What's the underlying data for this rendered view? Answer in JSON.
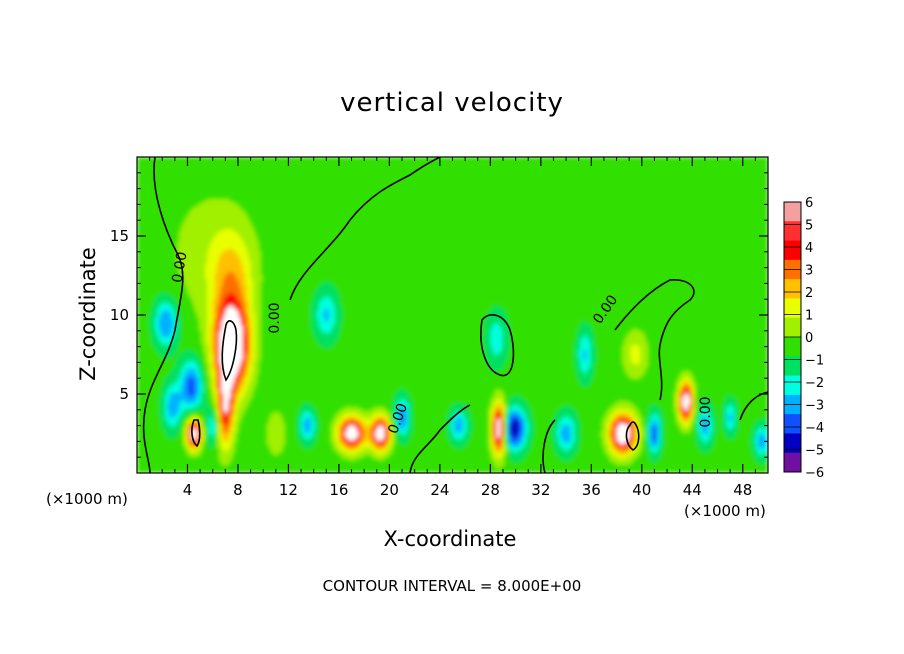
{
  "chart_data": {
    "type": "heatmap",
    "title": "vertical velocity",
    "xlabel": "X-coordinate",
    "ylabel": "Z-coordinate",
    "x_units": "(×1000 m)",
    "y_units": "(×1000 m)",
    "xlim": [
      0,
      50
    ],
    "ylim": [
      0,
      20
    ],
    "xticks": [
      4,
      8,
      12,
      16,
      20,
      24,
      28,
      32,
      36,
      40,
      44,
      48
    ],
    "yticks": [
      5,
      10,
      15
    ],
    "colorbar": {
      "min": -6,
      "max": 6,
      "ticks": [
        6,
        5,
        4,
        3,
        2,
        1,
        0,
        -1,
        -2,
        -3,
        -4,
        -5,
        -6
      ],
      "colors": [
        "#f4a0a0",
        "#ff3030",
        "#ff0000",
        "#ff7000",
        "#ffc000",
        "#e8ff00",
        "#a0f000",
        "#30e000",
        "#00e060",
        "#00ffe0",
        "#00b0ff",
        "#1050ff",
        "#0000c0",
        "#7010a0"
      ]
    },
    "contour_label": "0.00",
    "contour_interval_text": "CONTOUR INTERVAL = 8.000E+00",
    "cells": [
      {
        "x": 7.5,
        "z": 8.0,
        "sx": 1.4,
        "sz": 2.8,
        "w": 8.5
      },
      {
        "x": 7.0,
        "z": 4.0,
        "sx": 0.7,
        "sz": 2.5,
        "w": 5.0
      },
      {
        "x": 7.5,
        "z": 12.5,
        "sx": 1.8,
        "sz": 3.0,
        "w": 2.5
      },
      {
        "x": 5.5,
        "z": 14.0,
        "sx": 3.5,
        "sz": 4.5,
        "w": 1.0
      },
      {
        "x": 4.5,
        "z": 2.5,
        "sx": 0.6,
        "sz": 1.0,
        "w": 7.0
      },
      {
        "x": 4.3,
        "z": 5.5,
        "sx": 0.9,
        "sz": 1.6,
        "w": -4.0
      },
      {
        "x": 2.3,
        "z": 9.5,
        "sx": 0.9,
        "sz": 1.5,
        "w": -3.5
      },
      {
        "x": 2.8,
        "z": 4.2,
        "sx": 0.7,
        "sz": 1.4,
        "w": -3.0
      },
      {
        "x": 6.0,
        "z": 3.0,
        "sx": 0.5,
        "sz": 1.2,
        "w": -2.5
      },
      {
        "x": 17.0,
        "z": 2.5,
        "sx": 1.1,
        "sz": 1.1,
        "w": 7.0
      },
      {
        "x": 19.3,
        "z": 2.5,
        "sx": 0.8,
        "sz": 1.1,
        "w": 7.0
      },
      {
        "x": 13.5,
        "z": 3.0,
        "sx": 0.6,
        "sz": 1.0,
        "w": -3.0
      },
      {
        "x": 15.0,
        "z": 10.0,
        "sx": 0.9,
        "sz": 1.5,
        "w": -2.5
      },
      {
        "x": 21.0,
        "z": 3.5,
        "sx": 0.6,
        "sz": 1.2,
        "w": -3.5
      },
      {
        "x": 25.5,
        "z": 3.0,
        "sx": 0.7,
        "sz": 1.0,
        "w": -3.0
      },
      {
        "x": 28.7,
        "z": 2.8,
        "sx": 0.6,
        "sz": 1.6,
        "w": 8.0
      },
      {
        "x": 29.8,
        "z": 2.8,
        "sx": 1.0,
        "sz": 1.3,
        "w": -5.5
      },
      {
        "x": 28.5,
        "z": 8.5,
        "sx": 0.8,
        "sz": 1.6,
        "w": -2.0
      },
      {
        "x": 34.0,
        "z": 2.5,
        "sx": 0.8,
        "sz": 1.2,
        "w": -3.0
      },
      {
        "x": 35.5,
        "z": 7.5,
        "sx": 0.6,
        "sz": 1.5,
        "w": -2.5
      },
      {
        "x": 38.5,
        "z": 2.5,
        "sx": 1.1,
        "sz": 1.3,
        "w": 7.5
      },
      {
        "x": 39.5,
        "z": 7.5,
        "sx": 1.0,
        "sz": 1.5,
        "w": 2.0
      },
      {
        "x": 41.0,
        "z": 2.5,
        "sx": 0.5,
        "sz": 1.2,
        "w": -4.0
      },
      {
        "x": 43.5,
        "z": 4.5,
        "sx": 0.6,
        "sz": 1.3,
        "w": 7.0
      },
      {
        "x": 45.0,
        "z": 3.0,
        "sx": 0.6,
        "sz": 1.2,
        "w": -3.0
      },
      {
        "x": 47.0,
        "z": 3.5,
        "sx": 0.5,
        "sz": 1.0,
        "w": -2.5
      },
      {
        "x": 49.5,
        "z": 2.0,
        "sx": 0.6,
        "sz": 1.0,
        "w": -3.0
      },
      {
        "x": 11.0,
        "z": 2.5,
        "sx": 0.8,
        "sz": 1.5,
        "w": 1.5
      }
    ]
  }
}
